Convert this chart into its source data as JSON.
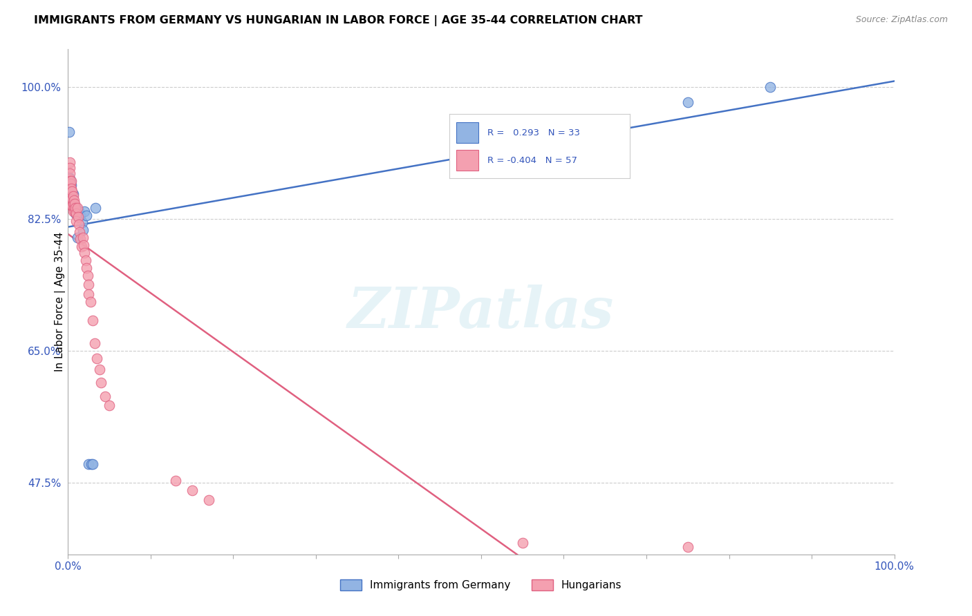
{
  "title": "IMMIGRANTS FROM GERMANY VS HUNGARIAN IN LABOR FORCE | AGE 35-44 CORRELATION CHART",
  "source": "Source: ZipAtlas.com",
  "ylabel": "In Labor Force | Age 35-44",
  "ytick_labels": [
    "100.0%",
    "82.5%",
    "65.0%",
    "47.5%"
  ],
  "ytick_values": [
    1.0,
    0.825,
    0.65,
    0.475
  ],
  "legend_germany": "Immigrants from Germany",
  "legend_hungarian": "Hungarians",
  "R_germany": 0.293,
  "N_germany": 33,
  "R_hungarian": -0.404,
  "N_hungarian": 57,
  "germany_color": "#92B4E3",
  "hungarian_color": "#F4A0B0",
  "germany_edge_color": "#4472C4",
  "hungarian_edge_color": "#E06080",
  "germany_line_color": "#4472C4",
  "hungarian_line_color": "#E06080",
  "background_color": "#ffffff",
  "watermark": "ZIPatlas",
  "xlim": [
    0.0,
    1.0
  ],
  "ylim": [
    0.38,
    1.05
  ],
  "germany_x": [
    0.001,
    0.001,
    0.002,
    0.002,
    0.002,
    0.003,
    0.003,
    0.003,
    0.003,
    0.004,
    0.004,
    0.005,
    0.005,
    0.005,
    0.006,
    0.007,
    0.008,
    0.009,
    0.01,
    0.011,
    0.013,
    0.015,
    0.017,
    0.018,
    0.02,
    0.022,
    0.025,
    0.028,
    0.03,
    0.033,
    0.55,
    0.75,
    0.85
  ],
  "germany_y": [
    0.88,
    0.94,
    0.878,
    0.868,
    0.858,
    0.875,
    0.865,
    0.858,
    0.85,
    0.87,
    0.858,
    0.86,
    0.852,
    0.843,
    0.858,
    0.845,
    0.84,
    0.832,
    0.84,
    0.8,
    0.835,
    0.83,
    0.82,
    0.81,
    0.835,
    0.83,
    0.5,
    0.5,
    0.5,
    0.84,
    0.9,
    0.98,
    1.0
  ],
  "hungarian_x": [
    0.001,
    0.001,
    0.001,
    0.001,
    0.002,
    0.002,
    0.002,
    0.002,
    0.002,
    0.003,
    0.003,
    0.003,
    0.003,
    0.004,
    0.004,
    0.004,
    0.004,
    0.005,
    0.005,
    0.005,
    0.006,
    0.006,
    0.006,
    0.007,
    0.007,
    0.008,
    0.008,
    0.009,
    0.01,
    0.01,
    0.011,
    0.012,
    0.013,
    0.014,
    0.015,
    0.016,
    0.018,
    0.019,
    0.02,
    0.021,
    0.022,
    0.024,
    0.025,
    0.025,
    0.027,
    0.03,
    0.032,
    0.035,
    0.038,
    0.04,
    0.045,
    0.05,
    0.13,
    0.15,
    0.17,
    0.55,
    0.75
  ],
  "hungarian_y": [
    0.878,
    0.868,
    0.858,
    0.848,
    0.9,
    0.893,
    0.885,
    0.875,
    0.865,
    0.872,
    0.863,
    0.853,
    0.843,
    0.875,
    0.865,
    0.855,
    0.845,
    0.862,
    0.852,
    0.842,
    0.855,
    0.845,
    0.835,
    0.85,
    0.84,
    0.845,
    0.835,
    0.84,
    0.832,
    0.822,
    0.84,
    0.828,
    0.818,
    0.808,
    0.798,
    0.788,
    0.8,
    0.79,
    0.78,
    0.77,
    0.76,
    0.75,
    0.738,
    0.725,
    0.715,
    0.69,
    0.66,
    0.64,
    0.625,
    0.608,
    0.59,
    0.578,
    0.478,
    0.465,
    0.452,
    0.395,
    0.39
  ]
}
